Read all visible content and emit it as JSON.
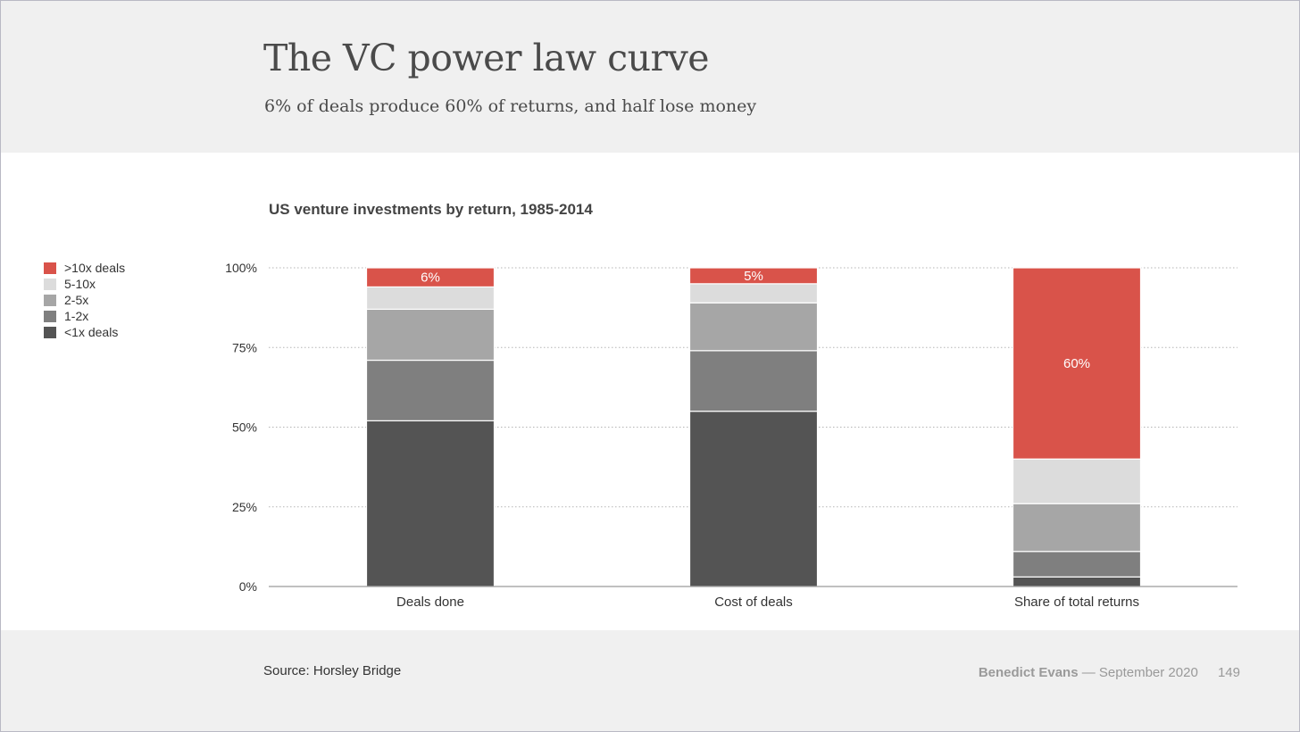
{
  "slide": {
    "title": "The VC power law curve",
    "subtitle": "6% of deals produce 60% of returns, and half lose money"
  },
  "footer": {
    "source": "Source: Horsley Bridge",
    "author": "Benedict Evans",
    "date": "— September 2020",
    "page": "149"
  },
  "colors": {
    "gt10x": "#d9534a",
    "5_10x": "#dcdcdc",
    "2_5x": "#a6a6a6",
    "1_2x": "#7f7f7f",
    "lt1x": "#545454"
  },
  "chart_data": {
    "type": "bar",
    "stacked": true,
    "title": "US venture investments by return, 1985-2014",
    "categories": [
      "Deals done",
      "Cost of deals",
      "Share of total returns"
    ],
    "ylim": [
      0,
      100
    ],
    "yticks": [
      "0%",
      "25%",
      "50%",
      "75%",
      "100%"
    ],
    "grid": true,
    "legend_position": "left",
    "series": [
      {
        "name": "<1x deals",
        "color": "#545454",
        "values": [
          52,
          55,
          3
        ]
      },
      {
        "name": "1-2x",
        "color": "#7f7f7f",
        "values": [
          19,
          19,
          8
        ]
      },
      {
        "name": "2-5x",
        "color": "#a6a6a6",
        "values": [
          16,
          15,
          15
        ]
      },
      {
        "name": "5-10x",
        "color": "#dcdcdc",
        "values": [
          7,
          6,
          14
        ]
      },
      {
        "name": ">10x deals",
        "color": "#d9534a",
        "values": [
          6,
          5,
          60
        ]
      }
    ],
    "data_labels": [
      {
        "series": ">10x deals",
        "category": "Deals done",
        "text": "6%"
      },
      {
        "series": ">10x deals",
        "category": "Cost of deals",
        "text": "5%"
      },
      {
        "series": ">10x deals",
        "category": "Share of total returns",
        "text": "60%"
      }
    ]
  }
}
